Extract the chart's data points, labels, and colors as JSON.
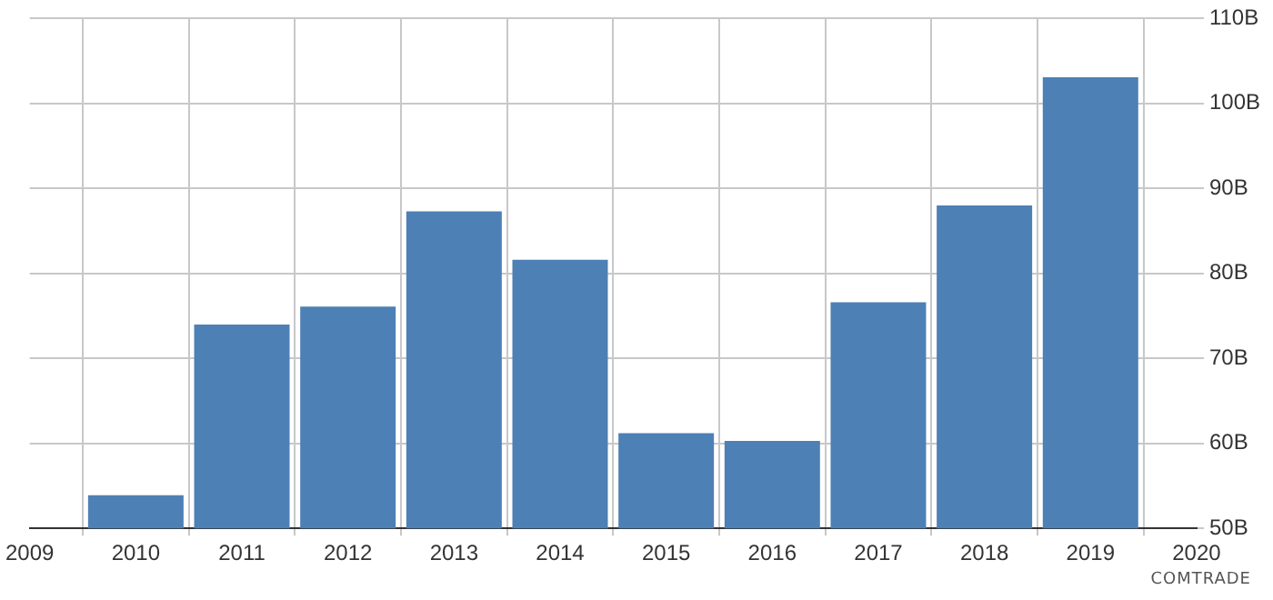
{
  "chart_data": {
    "type": "bar",
    "x": [
      2010,
      2011,
      2012,
      2013,
      2014,
      2015,
      2016,
      2017,
      2018,
      2019
    ],
    "values": [
      53.9,
      74.0,
      76.1,
      87.3,
      81.6,
      61.2,
      60.3,
      76.6,
      88.0,
      103.1
    ],
    "color": "#4d80b5",
    "xlim": [
      2009,
      2020
    ],
    "xticks": [
      2009,
      2010,
      2011,
      2012,
      2013,
      2014,
      2015,
      2016,
      2017,
      2018,
      2019,
      2020
    ],
    "ylim": [
      50,
      110
    ],
    "yticks": [
      {
        "value": 50,
        "label": "50B"
      },
      {
        "value": 60,
        "label": "60B"
      },
      {
        "value": 70,
        "label": "70B"
      },
      {
        "value": 80,
        "label": "80B"
      },
      {
        "value": 90,
        "label": "90B"
      },
      {
        "value": 100,
        "label": "100B"
      },
      {
        "value": 110,
        "label": "110B"
      }
    ],
    "grid": true,
    "annotations": [
      "COMTRADE"
    ]
  }
}
